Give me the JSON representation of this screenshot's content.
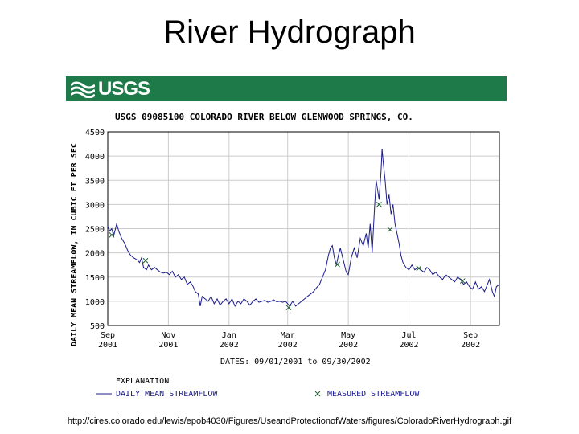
{
  "slide": {
    "title": "River Hydrograph",
    "source_url": "http://cires.colorado.edu/lewis/epob4030/Figures/UseandProtectionofWaters/figures/ColoradoRiverHydrograph.gif"
  },
  "banner": {
    "logo_text": "USGS",
    "color": "#1f7a4a"
  },
  "chart_data": {
    "type": "line",
    "title": "USGS 09085100 COLORADO RIVER BELOW GLENWOOD SPRINGS, CO.",
    "ylabel": "DAILY MEAN STREAMFLOW, IN CUBIC FT PER SEC",
    "xlabel": "DATES: 09/01/2001 to 09/30/2002",
    "ylim": [
      500,
      4500
    ],
    "yticks": [
      500,
      1000,
      1500,
      2000,
      2500,
      3000,
      3500,
      4000,
      4500
    ],
    "x_range": [
      "2001-09-01",
      "2002-09-30"
    ],
    "xticks": [
      {
        "date": "2001-09-01",
        "line1": "Sep",
        "line2": "2001"
      },
      {
        "date": "2001-11-01",
        "line1": "Nov",
        "line2": "2001"
      },
      {
        "date": "2002-01-01",
        "line1": "Jan",
        "line2": "2002"
      },
      {
        "date": "2002-03-01",
        "line1": "Mar",
        "line2": "2002"
      },
      {
        "date": "2002-05-01",
        "line1": "May",
        "line2": "2002"
      },
      {
        "date": "2002-07-01",
        "line1": "Jul",
        "line2": "2002"
      },
      {
        "date": "2002-09-01",
        "line1": "Sep",
        "line2": "2002"
      }
    ],
    "grid": true,
    "legend": {
      "title": "EXPLANATION",
      "line_label": "DAILY MEAN STREAMFLOW",
      "marker_label": "MEASURED STREAMFLOW"
    },
    "series": [
      {
        "name": "DAILY MEAN STREAMFLOW",
        "color": "#1c1c8c",
        "points": [
          [
            "2001-09-01",
            2550
          ],
          [
            "2001-09-03",
            2450
          ],
          [
            "2001-09-05",
            2500
          ],
          [
            "2001-09-07",
            2350
          ],
          [
            "2001-09-10",
            2600
          ],
          [
            "2001-09-12",
            2450
          ],
          [
            "2001-09-15",
            2300
          ],
          [
            "2001-09-18",
            2200
          ],
          [
            "2001-09-21",
            2050
          ],
          [
            "2001-09-24",
            1950
          ],
          [
            "2001-09-27",
            1900
          ],
          [
            "2001-10-01",
            1850
          ],
          [
            "2001-10-03",
            1800
          ],
          [
            "2001-10-05",
            1900
          ],
          [
            "2001-10-07",
            1700
          ],
          [
            "2001-10-10",
            1650
          ],
          [
            "2001-10-12",
            1750
          ],
          [
            "2001-10-15",
            1650
          ],
          [
            "2001-10-18",
            1700
          ],
          [
            "2001-10-21",
            1650
          ],
          [
            "2001-10-24",
            1600
          ],
          [
            "2001-10-27",
            1580
          ],
          [
            "2001-10-30",
            1600
          ],
          [
            "2001-11-02",
            1550
          ],
          [
            "2001-11-05",
            1620
          ],
          [
            "2001-11-08",
            1500
          ],
          [
            "2001-11-11",
            1550
          ],
          [
            "2001-11-14",
            1450
          ],
          [
            "2001-11-17",
            1500
          ],
          [
            "2001-11-20",
            1350
          ],
          [
            "2001-11-23",
            1400
          ],
          [
            "2001-11-26",
            1300
          ],
          [
            "2001-11-28",
            1200
          ],
          [
            "2001-12-01",
            1150
          ],
          [
            "2001-12-03",
            900
          ],
          [
            "2001-12-05",
            1100
          ],
          [
            "2001-12-08",
            1050
          ],
          [
            "2001-12-11",
            1000
          ],
          [
            "2001-12-14",
            1100
          ],
          [
            "2001-12-17",
            950
          ],
          [
            "2001-12-20",
            1050
          ],
          [
            "2001-12-23",
            920
          ],
          [
            "2001-12-26",
            1000
          ],
          [
            "2001-12-29",
            1050
          ],
          [
            "2002-01-01",
            950
          ],
          [
            "2002-01-04",
            1050
          ],
          [
            "2002-01-07",
            900
          ],
          [
            "2002-01-10",
            1000
          ],
          [
            "2002-01-13",
            950
          ],
          [
            "2002-01-16",
            1050
          ],
          [
            "2002-01-19",
            1000
          ],
          [
            "2002-01-22",
            920
          ],
          [
            "2002-01-25",
            1000
          ],
          [
            "2002-01-28",
            1050
          ],
          [
            "2002-01-31",
            980
          ],
          [
            "2002-02-03",
            1000
          ],
          [
            "2002-02-06",
            1020
          ],
          [
            "2002-02-09",
            980
          ],
          [
            "2002-02-12",
            1000
          ],
          [
            "2002-02-15",
            1030
          ],
          [
            "2002-02-18",
            990
          ],
          [
            "2002-02-21",
            1000
          ],
          [
            "2002-02-24",
            980
          ],
          [
            "2002-02-27",
            1000
          ],
          [
            "2002-03-01",
            950
          ],
          [
            "2002-03-03",
            900
          ],
          [
            "2002-03-06",
            1000
          ],
          [
            "2002-03-09",
            900
          ],
          [
            "2002-03-12",
            950
          ],
          [
            "2002-03-15",
            1000
          ],
          [
            "2002-03-18",
            1050
          ],
          [
            "2002-03-21",
            1100
          ],
          [
            "2002-03-24",
            1150
          ],
          [
            "2002-03-27",
            1200
          ],
          [
            "2002-03-30",
            1280
          ],
          [
            "2002-04-02",
            1350
          ],
          [
            "2002-04-05",
            1500
          ],
          [
            "2002-04-08",
            1650
          ],
          [
            "2002-04-11",
            1950
          ],
          [
            "2002-04-13",
            2100
          ],
          [
            "2002-04-15",
            2150
          ],
          [
            "2002-04-17",
            1900
          ],
          [
            "2002-04-19",
            1750
          ],
          [
            "2002-04-21",
            1950
          ],
          [
            "2002-04-23",
            2100
          ],
          [
            "2002-04-26",
            1850
          ],
          [
            "2002-04-29",
            1600
          ],
          [
            "2002-05-01",
            1550
          ],
          [
            "2002-05-04",
            1900
          ],
          [
            "2002-05-07",
            2100
          ],
          [
            "2002-05-10",
            1900
          ],
          [
            "2002-05-13",
            2300
          ],
          [
            "2002-05-16",
            2150
          ],
          [
            "2002-05-19",
            2400
          ],
          [
            "2002-05-21",
            2100
          ],
          [
            "2002-05-23",
            2600
          ],
          [
            "2002-05-25",
            2000
          ],
          [
            "2002-05-27",
            2800
          ],
          [
            "2002-05-29",
            3500
          ],
          [
            "2002-06-01",
            3100
          ],
          [
            "2002-06-03",
            3700
          ],
          [
            "2002-06-04",
            4150
          ],
          [
            "2002-06-05",
            3900
          ],
          [
            "2002-06-07",
            3500
          ],
          [
            "2002-06-09",
            3000
          ],
          [
            "2002-06-11",
            3200
          ],
          [
            "2002-06-13",
            2800
          ],
          [
            "2002-06-15",
            3000
          ],
          [
            "2002-06-17",
            2600
          ],
          [
            "2002-06-19",
            2400
          ],
          [
            "2002-06-21",
            2200
          ],
          [
            "2002-06-23",
            1950
          ],
          [
            "2002-06-25",
            1800
          ],
          [
            "2002-06-28",
            1700
          ],
          [
            "2002-07-01",
            1650
          ],
          [
            "2002-07-04",
            1750
          ],
          [
            "2002-07-07",
            1650
          ],
          [
            "2002-07-10",
            1700
          ],
          [
            "2002-07-13",
            1650
          ],
          [
            "2002-07-16",
            1600
          ],
          [
            "2002-07-19",
            1700
          ],
          [
            "2002-07-22",
            1650
          ],
          [
            "2002-07-25",
            1550
          ],
          [
            "2002-07-28",
            1600
          ],
          [
            "2002-08-01",
            1500
          ],
          [
            "2002-08-04",
            1450
          ],
          [
            "2002-08-07",
            1550
          ],
          [
            "2002-08-10",
            1500
          ],
          [
            "2002-08-13",
            1450
          ],
          [
            "2002-08-16",
            1400
          ],
          [
            "2002-08-19",
            1500
          ],
          [
            "2002-08-22",
            1450
          ],
          [
            "2002-08-25",
            1350
          ],
          [
            "2002-08-28",
            1400
          ],
          [
            "2002-08-31",
            1300
          ],
          [
            "2002-09-03",
            1250
          ],
          [
            "2002-09-06",
            1400
          ],
          [
            "2002-09-09",
            1250
          ],
          [
            "2002-09-12",
            1300
          ],
          [
            "2002-09-15",
            1200
          ],
          [
            "2002-09-18",
            1350
          ],
          [
            "2002-09-20",
            1450
          ],
          [
            "2002-09-23",
            1200
          ],
          [
            "2002-09-25",
            1100
          ],
          [
            "2002-09-27",
            1300
          ],
          [
            "2002-09-30",
            1350
          ]
        ]
      },
      {
        "name": "MEASURED STREAMFLOW",
        "marker": "x",
        "color": "#1a5a2a",
        "points": [
          [
            "2001-09-05",
            2370
          ],
          [
            "2001-10-09",
            1840
          ],
          [
            "2002-03-02",
            870
          ],
          [
            "2002-04-20",
            1760
          ],
          [
            "2002-06-01",
            3000
          ],
          [
            "2002-06-12",
            2480
          ],
          [
            "2002-07-11",
            1680
          ],
          [
            "2002-08-24",
            1420
          ]
        ]
      }
    ]
  }
}
